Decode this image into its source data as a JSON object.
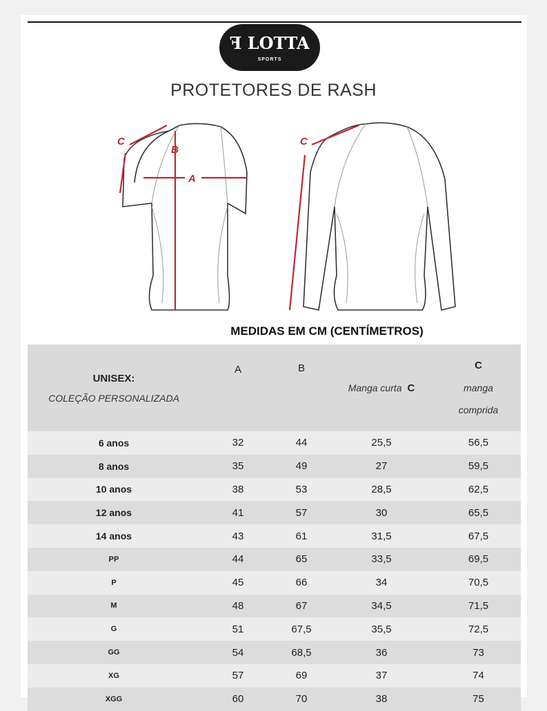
{
  "brand": {
    "name": "LOTTA",
    "tagline": "SPORTS"
  },
  "title": "PROTETORES DE RASH",
  "diagram": {
    "labels": {
      "a": "A",
      "b": "B",
      "c": "C"
    },
    "measure_color": "#c0272d"
  },
  "subtitle": "MEDIDAS EM CM (CENTÍMETROS)",
  "table": {
    "header": {
      "col0_line1": "UNISEX:",
      "col0_line2": "COLEÇÃO  PERSONALIZADA",
      "a": "A",
      "b": "B",
      "short_prefix": "Manga curta ",
      "short_c": "C",
      "long_c": "C",
      "long_line1": "manga",
      "long_line2": "comprida"
    },
    "rows": [
      [
        "6 anos",
        "32",
        "44",
        "25,5",
        "56,5"
      ],
      [
        "8 anos",
        "35",
        "49",
        "27",
        "59,5"
      ],
      [
        "10 anos",
        "38",
        "53",
        "28,5",
        "62,5"
      ],
      [
        "12 anos",
        "41",
        "57",
        "30",
        "65,5"
      ],
      [
        "14 anos",
        "43",
        "61",
        "31,5",
        "67,5"
      ],
      [
        "PP",
        "44",
        "65",
        "33,5",
        "69,5"
      ],
      [
        "P",
        "45",
        "66",
        "34",
        "70,5"
      ],
      [
        "M",
        "48",
        "67",
        "34,5",
        "71,5"
      ],
      [
        "G",
        "51",
        "67,5",
        "35,5",
        "72,5"
      ],
      [
        "GG",
        "54",
        "68,5",
        "36",
        "73"
      ],
      [
        "XG",
        "57",
        "69",
        "37",
        "74"
      ],
      [
        "XGG",
        "60",
        "70",
        "38",
        "75"
      ]
    ]
  }
}
